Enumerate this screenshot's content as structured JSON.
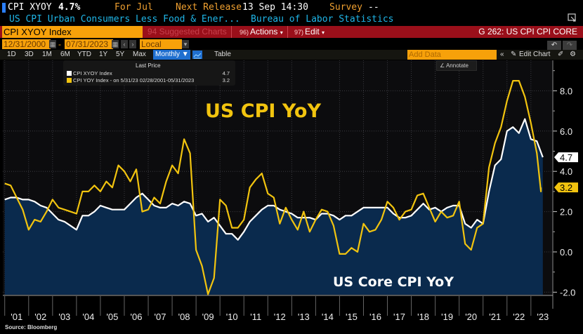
{
  "header": {
    "ticker": "CPI XYOY",
    "value": "4.7%",
    "period": "For Jul",
    "next_release_label": "Next Release",
    "next_release_value": "13 Sep 14:30",
    "survey_label": "Survey",
    "survey_value": "--",
    "description": "US CPI Urban Consumers Less Food & Ener...",
    "source_agency": "Bureau of Labor Statistics"
  },
  "toolbar": {
    "security": "CPI XYOY Index",
    "suggested": "94 Suggested Charts",
    "actions_num": "96)",
    "actions_label": "Actions",
    "edit_num": "97)",
    "edit_label": "Edit",
    "graph_title": "G 262: US CPI CPI CORE"
  },
  "range": {
    "start_date": "12/31/2000",
    "separator": "-",
    "end_date": "07/31/2023",
    "currency": "Local CCY",
    "periods": [
      "1D",
      "3D",
      "1M",
      "6M",
      "YTD",
      "1Y",
      "5Y",
      "Max"
    ],
    "frequency": "Monthly",
    "table_label": "Table",
    "add_data_placeholder": "Add Data",
    "edit_chart_label": "Edit Chart",
    "annotate_label": "Annotate"
  },
  "legend": {
    "header": "Last Price",
    "rows": [
      {
        "label": "CPI XYOY Index",
        "value": "4.7",
        "color": "#ffffff"
      },
      {
        "label": "CPI YOY Index -  on 5/31/23 02/28/2001-05/31/2023",
        "value": "3.2",
        "color": "#f2c40f"
      }
    ]
  },
  "footer": {
    "source": "Source: Bloomberg"
  },
  "chart_data": {
    "type": "line",
    "title": "US CPI YoY",
    "subtitle": "US Core CPI YoY",
    "xlabel": "",
    "ylabel": "",
    "x_range": [
      2001.0,
      2023.58
    ],
    "ylim": [
      -2.2,
      9.4
    ],
    "y_ticks": [
      -2.0,
      0.0,
      2.0,
      4.0,
      6.0,
      8.0
    ],
    "y_tick_labels": [
      "-2.0",
      "0.0",
      "2.0",
      "4.0",
      "6.0",
      "8.0"
    ],
    "x_tick_labels": [
      "'01",
      "'02",
      "'03",
      "'04",
      "'05",
      "'06",
      "'07",
      "'08",
      "'09",
      "'10",
      "'11",
      "'12",
      "'13",
      "'14",
      "'15",
      "'16",
      "'17",
      "'18",
      "'19",
      "'20",
      "'21",
      "'22",
      "'23"
    ],
    "grid": true,
    "legend_position": "top-left",
    "series": [
      {
        "name": "CPI XYOY Index",
        "color": "#ffffff",
        "fill": "#0a2a4d",
        "last_value": 4.7,
        "points": [
          [
            2001.0,
            2.6
          ],
          [
            2001.25,
            2.7
          ],
          [
            2001.5,
            2.7
          ],
          [
            2001.75,
            2.6
          ],
          [
            2002.0,
            2.6
          ],
          [
            2002.25,
            2.5
          ],
          [
            2002.5,
            2.3
          ],
          [
            2002.75,
            2.2
          ],
          [
            2003.0,
            1.9
          ],
          [
            2003.25,
            1.6
          ],
          [
            2003.5,
            1.5
          ],
          [
            2003.75,
            1.3
          ],
          [
            2004.0,
            1.1
          ],
          [
            2004.25,
            1.8
          ],
          [
            2004.5,
            1.8
          ],
          [
            2004.75,
            2.0
          ],
          [
            2005.0,
            2.3
          ],
          [
            2005.25,
            2.2
          ],
          [
            2005.5,
            2.1
          ],
          [
            2005.75,
            2.1
          ],
          [
            2006.0,
            2.1
          ],
          [
            2006.25,
            2.4
          ],
          [
            2006.5,
            2.7
          ],
          [
            2006.75,
            2.9
          ],
          [
            2007.0,
            2.6
          ],
          [
            2007.25,
            2.3
          ],
          [
            2007.5,
            2.2
          ],
          [
            2007.75,
            2.2
          ],
          [
            2008.0,
            2.4
          ],
          [
            2008.25,
            2.3
          ],
          [
            2008.5,
            2.5
          ],
          [
            2008.75,
            2.4
          ],
          [
            2009.0,
            1.8
          ],
          [
            2009.25,
            1.9
          ],
          [
            2009.5,
            1.5
          ],
          [
            2009.75,
            1.7
          ],
          [
            2010.0,
            1.3
          ],
          [
            2010.25,
            0.9
          ],
          [
            2010.5,
            0.9
          ],
          [
            2010.75,
            0.6
          ],
          [
            2011.0,
            1.0
          ],
          [
            2011.25,
            1.5
          ],
          [
            2011.5,
            1.8
          ],
          [
            2011.75,
            2.1
          ],
          [
            2012.0,
            2.3
          ],
          [
            2012.25,
            2.3
          ],
          [
            2012.5,
            2.1
          ],
          [
            2012.75,
            2.0
          ],
          [
            2013.0,
            1.9
          ],
          [
            2013.25,
            1.7
          ],
          [
            2013.5,
            1.7
          ],
          [
            2013.75,
            1.7
          ],
          [
            2014.0,
            1.6
          ],
          [
            2014.25,
            1.9
          ],
          [
            2014.5,
            1.9
          ],
          [
            2014.75,
            1.8
          ],
          [
            2015.0,
            1.6
          ],
          [
            2015.25,
            1.8
          ],
          [
            2015.5,
            1.8
          ],
          [
            2015.75,
            2.0
          ],
          [
            2016.0,
            2.2
          ],
          [
            2016.25,
            2.2
          ],
          [
            2016.5,
            2.2
          ],
          [
            2016.75,
            2.2
          ],
          [
            2017.0,
            2.2
          ],
          [
            2017.25,
            1.9
          ],
          [
            2017.5,
            1.7
          ],
          [
            2017.75,
            1.7
          ],
          [
            2018.0,
            1.8
          ],
          [
            2018.25,
            2.1
          ],
          [
            2018.5,
            2.4
          ],
          [
            2018.75,
            2.1
          ],
          [
            2019.0,
            2.2
          ],
          [
            2019.25,
            2.0
          ],
          [
            2019.5,
            2.2
          ],
          [
            2019.75,
            2.3
          ],
          [
            2020.0,
            2.3
          ],
          [
            2020.25,
            1.4
          ],
          [
            2020.5,
            1.2
          ],
          [
            2020.75,
            1.6
          ],
          [
            2021.0,
            1.4
          ],
          [
            2021.25,
            3.0
          ],
          [
            2021.5,
            4.3
          ],
          [
            2021.75,
            4.6
          ],
          [
            2022.0,
            6.0
          ],
          [
            2022.25,
            6.2
          ],
          [
            2022.5,
            5.9
          ],
          [
            2022.75,
            6.6
          ],
          [
            2023.0,
            5.6
          ],
          [
            2023.25,
            5.5
          ],
          [
            2023.5,
            4.7
          ]
        ]
      },
      {
        "name": "CPI YOY Index",
        "color": "#f2c40f",
        "last_value": 3.2,
        "points": [
          [
            2001.0,
            3.4
          ],
          [
            2001.25,
            3.3
          ],
          [
            2001.5,
            2.7
          ],
          [
            2001.75,
            2.1
          ],
          [
            2002.0,
            1.1
          ],
          [
            2002.25,
            1.6
          ],
          [
            2002.5,
            1.5
          ],
          [
            2002.75,
            2.0
          ],
          [
            2003.0,
            2.6
          ],
          [
            2003.25,
            2.2
          ],
          [
            2003.5,
            2.1
          ],
          [
            2003.75,
            2.0
          ],
          [
            2004.0,
            1.9
          ],
          [
            2004.25,
            3.0
          ],
          [
            2004.5,
            3.0
          ],
          [
            2004.75,
            3.3
          ],
          [
            2005.0,
            3.0
          ],
          [
            2005.25,
            3.5
          ],
          [
            2005.5,
            3.2
          ],
          [
            2005.75,
            4.3
          ],
          [
            2006.0,
            4.0
          ],
          [
            2006.25,
            3.5
          ],
          [
            2006.5,
            4.1
          ],
          [
            2006.75,
            2.0
          ],
          [
            2007.0,
            2.1
          ],
          [
            2007.25,
            2.7
          ],
          [
            2007.5,
            2.4
          ],
          [
            2007.75,
            3.5
          ],
          [
            2008.0,
            4.3
          ],
          [
            2008.25,
            3.9
          ],
          [
            2008.5,
            5.6
          ],
          [
            2008.75,
            4.9
          ],
          [
            2009.0,
            0.1
          ],
          [
            2009.25,
            -0.7
          ],
          [
            2009.5,
            -2.1
          ],
          [
            2009.75,
            -1.3
          ],
          [
            2010.0,
            2.6
          ],
          [
            2010.25,
            2.3
          ],
          [
            2010.5,
            1.2
          ],
          [
            2010.75,
            1.2
          ],
          [
            2011.0,
            1.6
          ],
          [
            2011.25,
            3.2
          ],
          [
            2011.5,
            3.6
          ],
          [
            2011.75,
            3.9
          ],
          [
            2012.0,
            2.9
          ],
          [
            2012.25,
            2.7
          ],
          [
            2012.5,
            1.4
          ],
          [
            2012.75,
            2.2
          ],
          [
            2013.0,
            1.6
          ],
          [
            2013.25,
            1.1
          ],
          [
            2013.5,
            2.0
          ],
          [
            2013.75,
            1.0
          ],
          [
            2014.0,
            1.6
          ],
          [
            2014.25,
            2.1
          ],
          [
            2014.5,
            2.0
          ],
          [
            2014.75,
            1.3
          ],
          [
            2015.0,
            -0.1
          ],
          [
            2015.25,
            -0.1
          ],
          [
            2015.5,
            0.2
          ],
          [
            2015.75,
            0.0
          ],
          [
            2016.0,
            1.4
          ],
          [
            2016.25,
            1.0
          ],
          [
            2016.5,
            1.1
          ],
          [
            2016.75,
            1.6
          ],
          [
            2017.0,
            2.5
          ],
          [
            2017.25,
            2.2
          ],
          [
            2017.5,
            1.6
          ],
          [
            2017.75,
            2.0
          ],
          [
            2018.0,
            2.1
          ],
          [
            2018.25,
            2.8
          ],
          [
            2018.5,
            2.9
          ],
          [
            2018.75,
            2.2
          ],
          [
            2019.0,
            1.5
          ],
          [
            2019.25,
            2.0
          ],
          [
            2019.5,
            1.7
          ],
          [
            2019.75,
            1.8
          ],
          [
            2020.0,
            2.5
          ],
          [
            2020.25,
            0.4
          ],
          [
            2020.5,
            0.1
          ],
          [
            2020.75,
            1.2
          ],
          [
            2021.0,
            1.4
          ],
          [
            2021.25,
            4.2
          ],
          [
            2021.5,
            5.4
          ],
          [
            2021.75,
            6.2
          ],
          [
            2022.0,
            7.5
          ],
          [
            2022.25,
            8.5
          ],
          [
            2022.5,
            8.5
          ],
          [
            2022.75,
            7.7
          ],
          [
            2023.0,
            6.4
          ],
          [
            2023.25,
            4.9
          ],
          [
            2023.42,
            3.0
          ],
          [
            2023.42,
            3.2
          ]
        ]
      }
    ]
  }
}
